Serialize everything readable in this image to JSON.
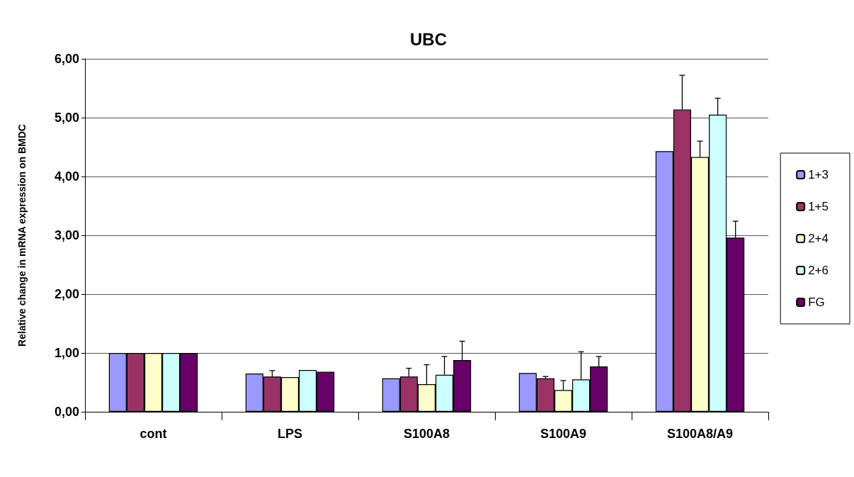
{
  "chart_data": {
    "type": "bar",
    "title": "UBC",
    "ylabel": "Relative change in mRNA expression on BMDC",
    "categories": [
      "cont",
      "LPS",
      "S100A8",
      "S100A9",
      "S100A8/A9"
    ],
    "series": [
      {
        "name": "1+3",
        "color": "#9999ff",
        "values": [
          1.0,
          0.65,
          0.57,
          0.66,
          4.43
        ]
      },
      {
        "name": "1+5",
        "color": "#993366",
        "values": [
          1.0,
          0.6,
          0.6,
          0.57,
          5.14
        ],
        "errors": [
          null,
          [
            0.6,
            0.7
          ],
          [
            0.6,
            0.74
          ],
          [
            0.57,
            0.6
          ],
          [
            5.14,
            5.72
          ]
        ]
      },
      {
        "name": "2+4",
        "color": "#ffffcc",
        "values": [
          1.0,
          0.59,
          0.47,
          0.37,
          4.33
        ],
        "errors": [
          null,
          null,
          [
            0.47,
            0.8
          ],
          [
            0.37,
            0.53
          ],
          [
            4.33,
            4.6
          ]
        ]
      },
      {
        "name": "2+6",
        "color": "#ccffff",
        "values": [
          1.0,
          0.71,
          0.63,
          0.55,
          5.05
        ],
        "errors": [
          null,
          null,
          [
            0.63,
            0.94
          ],
          [
            0.55,
            1.02
          ],
          [
            5.05,
            5.33
          ]
        ]
      },
      {
        "name": "FG",
        "color": "#660066",
        "values": [
          1.0,
          0.68,
          0.88,
          0.77,
          2.96
        ],
        "errors": [
          null,
          null,
          [
            0.88,
            1.2
          ],
          [
            0.77,
            0.94
          ],
          [
            2.96,
            3.24
          ]
        ]
      }
    ],
    "ylim": [
      0,
      6
    ],
    "yticks": [
      {
        "value": 0,
        "label": "0,00"
      },
      {
        "value": 1,
        "label": "1,00"
      },
      {
        "value": 2,
        "label": "2,00"
      },
      {
        "value": 3,
        "label": "3,00"
      },
      {
        "value": 4,
        "label": "4,00"
      },
      {
        "value": 5,
        "label": "5,00"
      },
      {
        "value": 6,
        "label": "6,00"
      }
    ],
    "grid": "y",
    "legend": "right"
  }
}
